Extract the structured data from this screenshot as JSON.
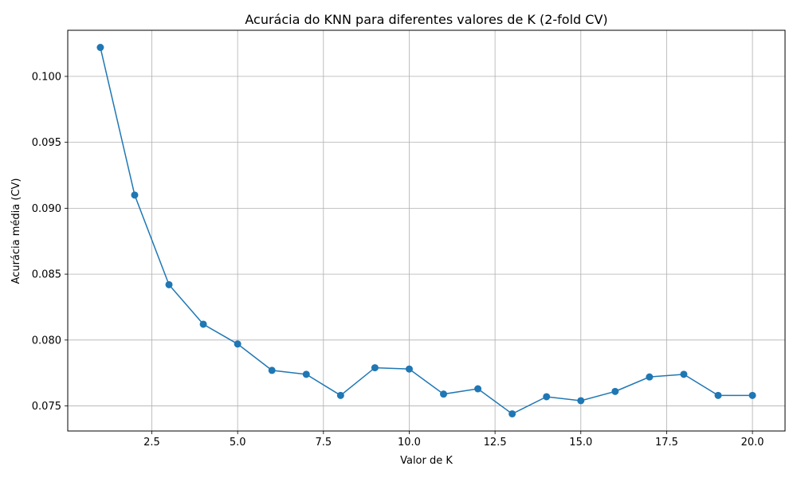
{
  "chart_data": {
    "type": "line",
    "title": "Acurácia do KNN para diferentes valores de K (2-fold CV)",
    "xlabel": "Valor de K",
    "ylabel": "Acurácia média (CV)",
    "xlim": [
      0.05,
      20.95
    ],
    "ylim": [
      0.0731,
      0.1035
    ],
    "xticks": [
      2.5,
      5.0,
      7.5,
      10.0,
      12.5,
      15.0,
      17.5,
      20.0
    ],
    "xtick_labels": [
      "2.5",
      "5.0",
      "7.5",
      "10.0",
      "12.5",
      "15.0",
      "17.5",
      "20.0"
    ],
    "yticks": [
      0.075,
      0.08,
      0.085,
      0.09,
      0.095,
      0.1
    ],
    "ytick_labels": [
      "0.075",
      "0.080",
      "0.085",
      "0.090",
      "0.095",
      "0.100"
    ],
    "grid": true,
    "series": [
      {
        "color": "#1f77b4",
        "marker": "circle",
        "x": [
          1,
          2,
          3,
          4,
          5,
          6,
          7,
          8,
          9,
          10,
          11,
          12,
          13,
          14,
          15,
          16,
          17,
          18,
          19,
          20
        ],
        "y": [
          0.1022,
          0.091,
          0.0842,
          0.0812,
          0.0797,
          0.0777,
          0.0774,
          0.0758,
          0.0779,
          0.0778,
          0.0759,
          0.0763,
          0.0744,
          0.0757,
          0.0754,
          0.0761,
          0.0772,
          0.0774,
          0.0758,
          0.0758
        ]
      }
    ]
  }
}
